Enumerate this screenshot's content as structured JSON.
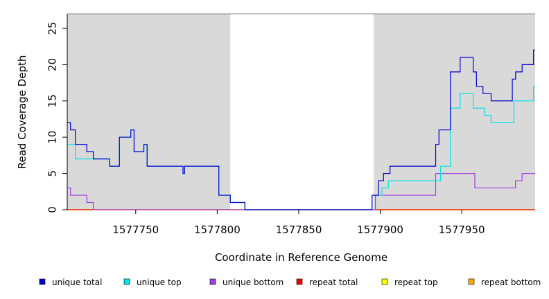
{
  "chart_data": {
    "type": "line",
    "step": true,
    "xlabel": "Coordinate in Reference Genome",
    "ylabel": "Read Coverage Depth",
    "xlim": [
      1577708,
      1577995
    ],
    "ylim": [
      0,
      27
    ],
    "x_ticks": [
      1577750,
      1577800,
      1577850,
      1577900,
      1577950
    ],
    "y_ticks": [
      0,
      5,
      10,
      15,
      20,
      25
    ],
    "shaded_regions": [
      {
        "x0": 1577708,
        "x1": 1577808,
        "color": "#d9d9d9"
      },
      {
        "x0": 1577896,
        "x1": 1577995,
        "color": "#d9d9d9"
      }
    ],
    "series": [
      {
        "name": "unique total",
        "color": "#0000cc",
        "points": [
          [
            1577708,
            12
          ],
          [
            1577710,
            11
          ],
          [
            1577713,
            9
          ],
          [
            1577720,
            8
          ],
          [
            1577724,
            7
          ],
          [
            1577734,
            6
          ],
          [
            1577740,
            10
          ],
          [
            1577747,
            11
          ],
          [
            1577749,
            8
          ],
          [
            1577755,
            9
          ],
          [
            1577757,
            6
          ],
          [
            1577779,
            5
          ],
          [
            1577780,
            6
          ],
          [
            1577801,
            2
          ],
          [
            1577808,
            1
          ],
          [
            1577817,
            0
          ],
          [
            1577895,
            2
          ],
          [
            1577899,
            4
          ],
          [
            1577902,
            5
          ],
          [
            1577906,
            6
          ],
          [
            1577934,
            9
          ],
          [
            1577936,
            11
          ],
          [
            1577943,
            19
          ],
          [
            1577949,
            21
          ],
          [
            1577957,
            19
          ],
          [
            1577959,
            17
          ],
          [
            1577963,
            16
          ],
          [
            1577968,
            15
          ],
          [
            1577981,
            18
          ],
          [
            1577983,
            19
          ],
          [
            1577987,
            20
          ],
          [
            1577994,
            22
          ]
        ],
        "x_end": 1577995
      },
      {
        "name": "unique top",
        "color": "#00e5e5",
        "points": [
          [
            1577708,
            9
          ],
          [
            1577713,
            7
          ],
          [
            1577724,
            7
          ],
          [
            1577734,
            6
          ],
          [
            1577740,
            10
          ],
          [
            1577747,
            11
          ],
          [
            1577749,
            8
          ],
          [
            1577755,
            9
          ],
          [
            1577757,
            6
          ],
          [
            1577779,
            5
          ],
          [
            1577780,
            6
          ],
          [
            1577801,
            2
          ],
          [
            1577808,
            1
          ],
          [
            1577817,
            0
          ],
          [
            1577895,
            2
          ],
          [
            1577901,
            3
          ],
          [
            1577905,
            4
          ],
          [
            1577934,
            4
          ],
          [
            1577937,
            6
          ],
          [
            1577943,
            14
          ],
          [
            1577949,
            16
          ],
          [
            1577957,
            14
          ],
          [
            1577964,
            13
          ],
          [
            1577968,
            12
          ],
          [
            1577982,
            15
          ],
          [
            1577994,
            17
          ]
        ],
        "x_end": 1577995
      },
      {
        "name": "unique bottom",
        "color": "#a040e0",
        "points": [
          [
            1577708,
            3
          ],
          [
            1577710,
            2
          ],
          [
            1577720,
            1
          ],
          [
            1577724,
            0
          ],
          [
            1577897,
            2
          ],
          [
            1577934,
            5
          ],
          [
            1577958,
            3
          ],
          [
            1577983,
            4
          ],
          [
            1577987,
            5
          ]
        ],
        "x_end": 1577995
      },
      {
        "name": "repeat total",
        "color": "#ee0000",
        "points": [
          [
            1577708,
            0
          ]
        ],
        "x_end": 1577995
      },
      {
        "name": "repeat top",
        "color": "#ffff00",
        "points": [
          [
            1577708,
            0
          ]
        ],
        "x_end": 1577995
      },
      {
        "name": "repeat bottom",
        "color": "#ffa500",
        "points": [
          [
            1577708,
            0
          ]
        ],
        "x_end": 1577995
      }
    ],
    "legend_position": "bottom"
  }
}
